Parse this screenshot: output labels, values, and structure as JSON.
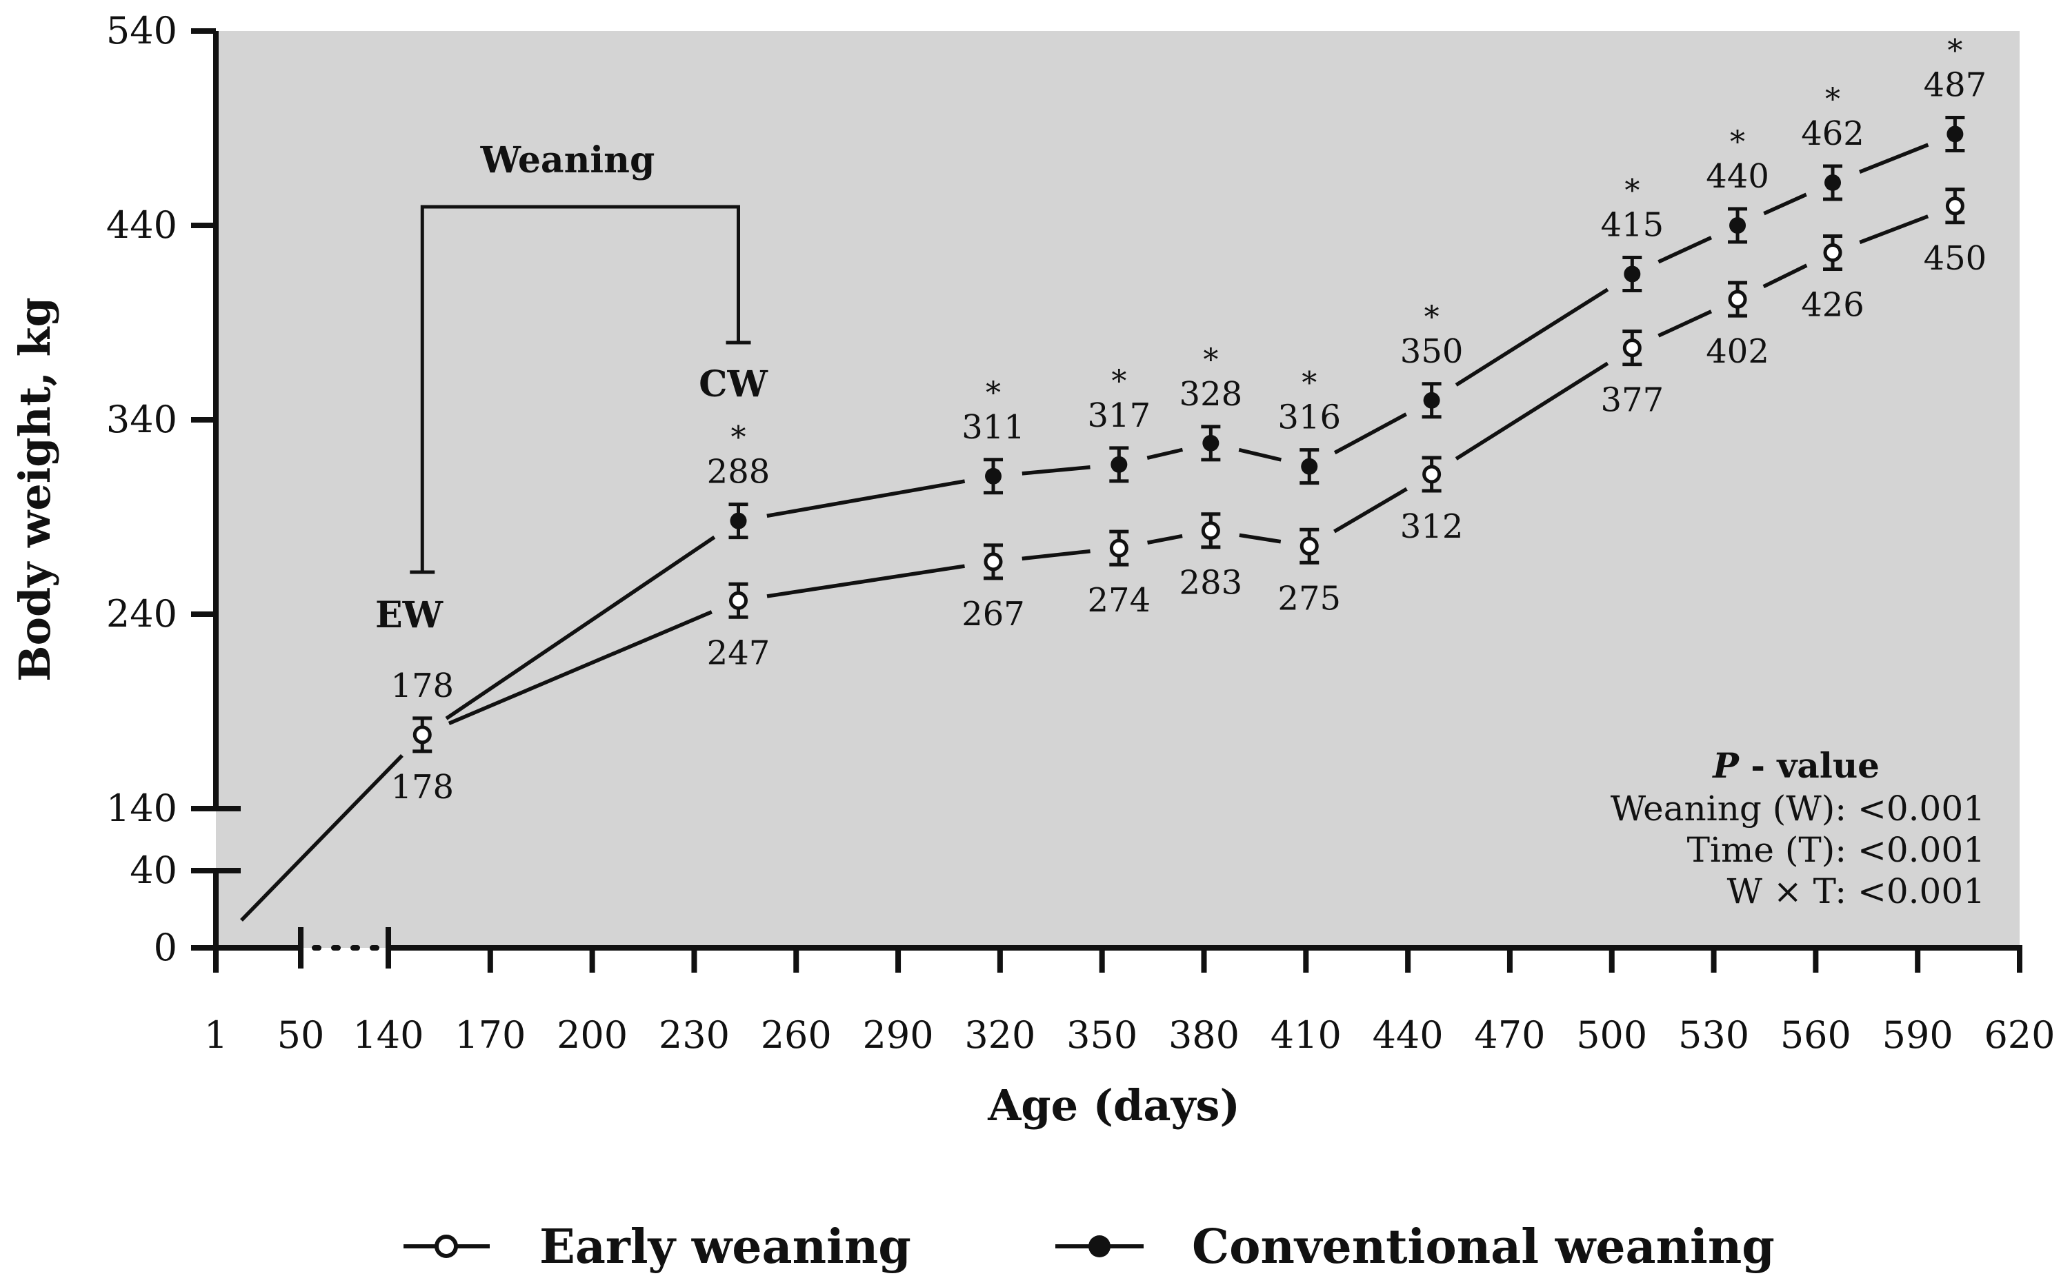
{
  "chart_data": {
    "type": "line",
    "title": "",
    "xlabel": "Age (days)",
    "ylabel": "Body weight, kg",
    "x_ticks": [
      "1",
      "50",
      "140",
      "170",
      "200",
      "230",
      "260",
      "290",
      "320",
      "350",
      "380",
      "410",
      "440",
      "470",
      "500",
      "530",
      "560",
      "590",
      "620"
    ],
    "y_ticks": [
      "0",
      "40",
      "140",
      "240",
      "340",
      "440",
      "540"
    ],
    "ylim": [
      0,
      540
    ],
    "y_axis_break": [
      40,
      140
    ],
    "x_axis_break": [
      50,
      140
    ],
    "series": [
      {
        "name": "Early weaning",
        "marker": "open-circle",
        "x": [
          150,
          243,
          318,
          355,
          382,
          411,
          447,
          506,
          537,
          565,
          601
        ],
        "values": [
          178,
          247,
          267,
          274,
          283,
          275,
          312,
          377,
          402,
          426,
          450
        ],
        "labels": [
          "178",
          "247",
          "267",
          "274",
          "283",
          "275",
          "312",
          "377",
          "402",
          "426",
          "450"
        ]
      },
      {
        "name": "Conventional weaning",
        "marker": "filled-circle",
        "x": [
          150,
          243,
          318,
          355,
          382,
          411,
          447,
          506,
          537,
          565,
          601
        ],
        "values": [
          178,
          288,
          311,
          317,
          328,
          316,
          350,
          415,
          440,
          462,
          487
        ],
        "labels": [
          "178",
          "288",
          "311",
          "317",
          "328",
          "316",
          "350",
          "415",
          "440",
          "462",
          "487"
        ],
        "significant": [
          false,
          true,
          true,
          true,
          true,
          true,
          true,
          true,
          true,
          true,
          true
        ],
        "significance_marker": "*"
      }
    ],
    "annotations": {
      "weaning_label": "Weaning",
      "early_weaning_marker": "EW",
      "conventional_weaning_marker": "CW",
      "early_weaning_age": 150,
      "conventional_weaning_age": 243
    },
    "p_values": {
      "title_italic": "P",
      "title_rest": " - value",
      "lines": [
        "Weaning (W): <0.001",
        "Time (T): <0.001",
        "W × T: <0.001"
      ]
    },
    "legend": {
      "position": "bottom",
      "items": [
        "Early weaning",
        "Conventional weaning"
      ]
    },
    "colors": {
      "plot_background": "#d4d4d4",
      "ink": "#111111",
      "open_marker_fill": "#ffffff"
    }
  }
}
